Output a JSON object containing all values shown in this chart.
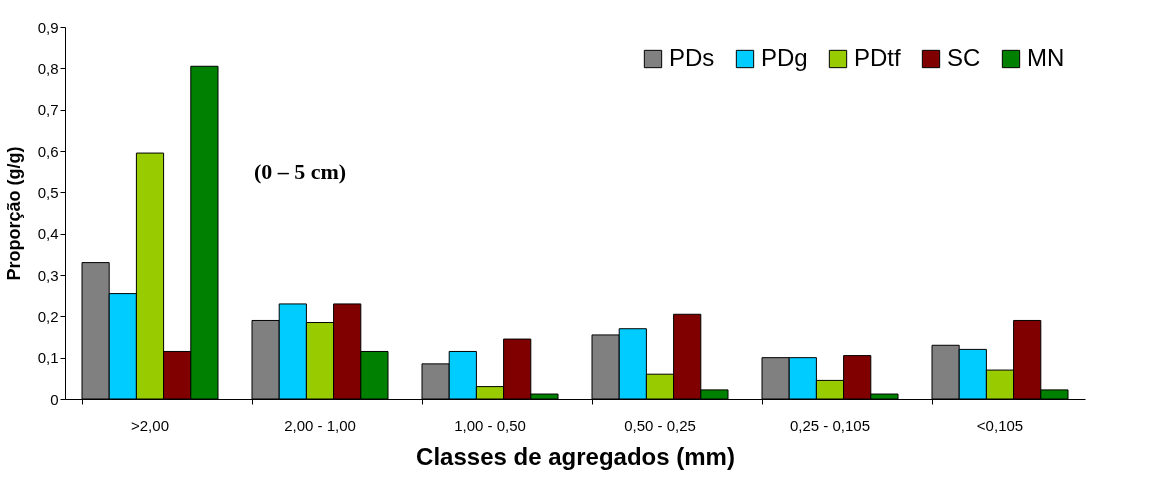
{
  "chart_data": {
    "type": "bar",
    "xlabel": "Classes de agregados (mm)",
    "ylabel": "Proporção (g/g)",
    "annotations": [
      "(0 – 5 cm)"
    ],
    "categories": [
      ">2,00",
      "2,00 - 1,00",
      "1,00 - 0,50",
      "0,50 - 0,25",
      "0,25 - 0,105",
      "<0,105"
    ],
    "series": [
      {
        "name": "PDs",
        "color": "#808080",
        "values": [
          0.33,
          0.19,
          0.085,
          0.155,
          0.1,
          0.13
        ]
      },
      {
        "name": "PDg",
        "color": "#00ccff",
        "values": [
          0.255,
          0.23,
          0.115,
          0.17,
          0.1,
          0.12
        ]
      },
      {
        "name": "PDtf",
        "color": "#99cc00",
        "values": [
          0.595,
          0.185,
          0.03,
          0.06,
          0.045,
          0.07
        ]
      },
      {
        "name": "SC",
        "color": "#800000",
        "values": [
          0.115,
          0.23,
          0.145,
          0.205,
          0.105,
          0.19
        ]
      },
      {
        "name": "MN",
        "color": "#008000",
        "values": [
          0.805,
          0.115,
          0.012,
          0.022,
          0.012,
          0.022
        ]
      }
    ],
    "ylim": [
      0,
      0.9
    ],
    "yticks": [
      {
        "value": 0,
        "label": "0"
      },
      {
        "value": 0.1,
        "label": "0,1"
      },
      {
        "value": 0.2,
        "label": "0,2"
      },
      {
        "value": 0.3,
        "label": "0,3"
      },
      {
        "value": 0.4,
        "label": "0,4"
      },
      {
        "value": 0.5,
        "label": "0,5"
      },
      {
        "value": 0.6,
        "label": "0,6"
      },
      {
        "value": 0.7,
        "label": "0,7"
      },
      {
        "value": 0.8,
        "label": "0,8"
      },
      {
        "value": 0.9,
        "label": "0,9"
      }
    ],
    "grid": false,
    "legend": "top right"
  }
}
